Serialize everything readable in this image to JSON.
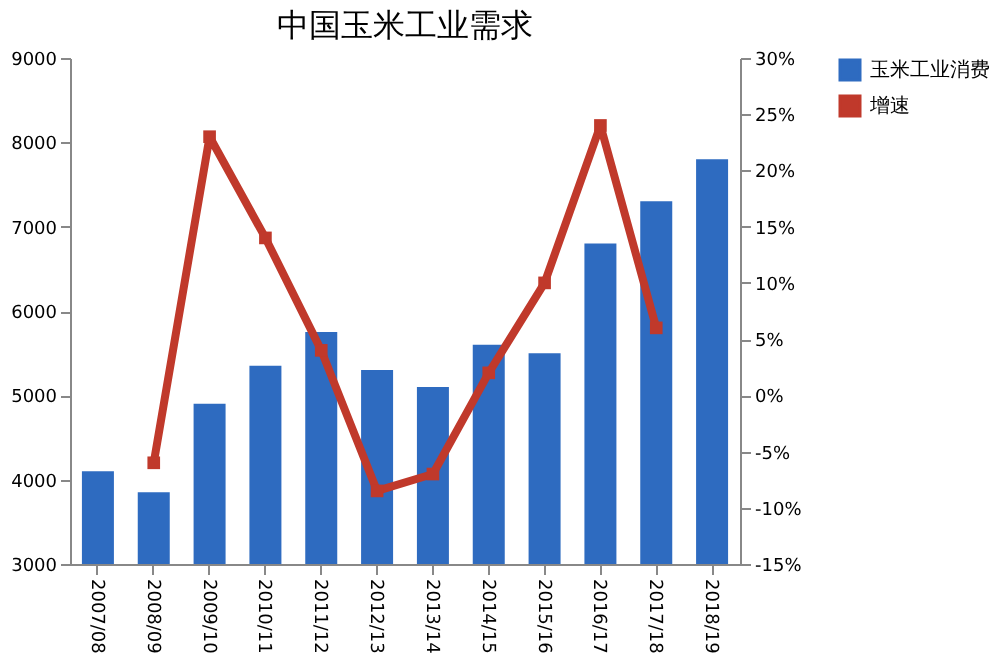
{
  "chart_data": {
    "type": "bar",
    "title": "中国玉米工业需求",
    "categories": [
      "2007/08",
      "2008/09",
      "2009/10",
      "2010/11",
      "2011/12",
      "2012/13",
      "2013/14",
      "2014/15",
      "2015/16",
      "2016/17",
      "2017/18",
      "2018/19"
    ],
    "series": [
      {
        "name": "玉米工业消费",
        "color": "#2e6bc0",
        "values": [
          4100,
          3850,
          4900,
          5350,
          5750,
          5300,
          5100,
          5600,
          5500,
          6800,
          7300,
          7800
        ]
      },
      {
        "name": "增速",
        "color": "#c0392b",
        "type": "line",
        "axis": "y2",
        "marker": "square",
        "values": [
          null,
          -6,
          23,
          14,
          4,
          -8.5,
          -7,
          2,
          10,
          24,
          6,
          null
        ]
      }
    ],
    "ylim": [
      3000,
      9000
    ],
    "yticks": [
      3000,
      4000,
      5000,
      6000,
      7000,
      8000,
      9000
    ],
    "y2lim": [
      -15,
      30
    ],
    "y2ticks": [
      {
        "value": -15,
        "label": "-15%"
      },
      {
        "value": -10,
        "label": "-10%"
      },
      {
        "value": -5,
        "label": "-5%"
      },
      {
        "value": 0,
        "label": "0%"
      },
      {
        "value": 5,
        "label": "5%"
      },
      {
        "value": 10,
        "label": "10%"
      },
      {
        "value": 15,
        "label": "15%"
      },
      {
        "value": 20,
        "label": "20%"
      },
      {
        "value": 25,
        "label": "25%"
      },
      {
        "value": 30,
        "label": "30%"
      }
    ],
    "legend": "right",
    "grid": false
  }
}
